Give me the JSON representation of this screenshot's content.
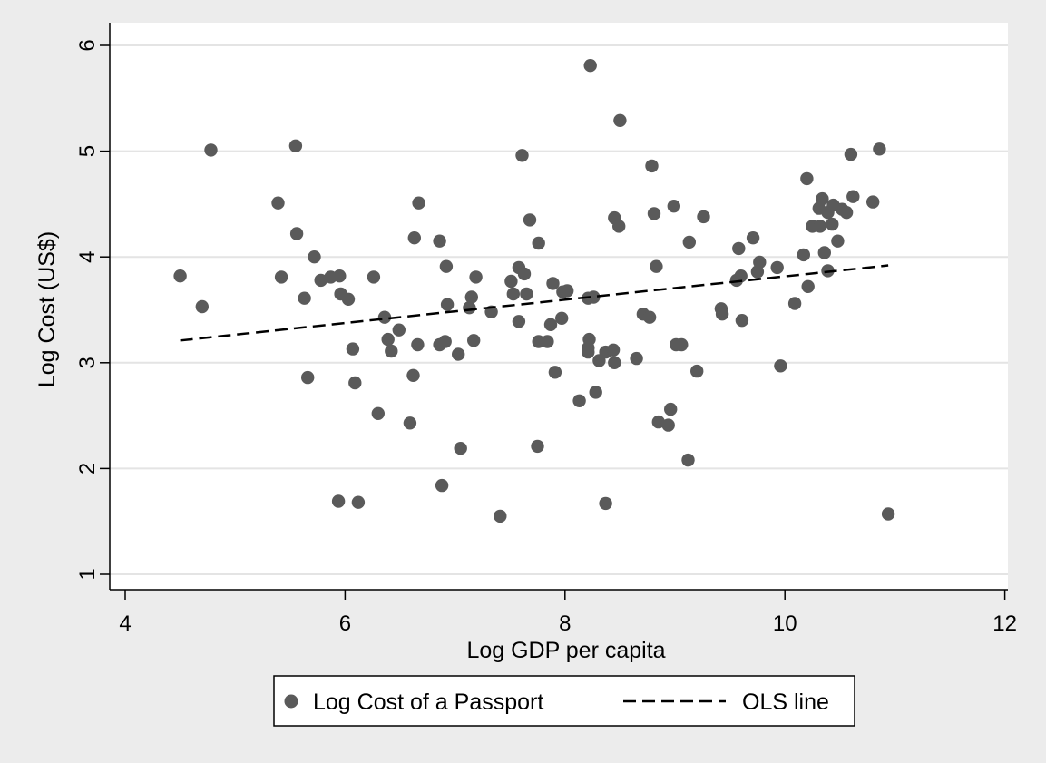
{
  "chart_data": {
    "type": "scatter",
    "title": "",
    "xlabel": "Log GDP per capita",
    "ylabel": "Log Cost (US$)",
    "xlim": [
      4,
      12
    ],
    "ylim": [
      1,
      6
    ],
    "x_ticks": [
      4,
      6,
      8,
      10,
      12
    ],
    "y_ticks": [
      1,
      2,
      3,
      4,
      5,
      6
    ],
    "grid": "horizontal",
    "legend_position": "bottom",
    "colors": {
      "background": "#ececec",
      "plot_area": "#ffffff",
      "gridline": "#e4e4e4",
      "points": "#5a5a5a",
      "ols_line": "#000000"
    },
    "series": [
      {
        "name": "Log Cost of a Passport",
        "kind": "scatter",
        "points": [
          [
            4.5,
            3.82
          ],
          [
            4.7,
            3.53
          ],
          [
            4.78,
            5.01
          ],
          [
            5.39,
            4.51
          ],
          [
            5.42,
            3.81
          ],
          [
            5.55,
            5.05
          ],
          [
            5.56,
            4.22
          ],
          [
            5.63,
            3.61
          ],
          [
            5.66,
            2.86
          ],
          [
            5.72,
            4.0
          ],
          [
            5.78,
            3.78
          ],
          [
            5.87,
            3.81
          ],
          [
            5.94,
            1.69
          ],
          [
            5.95,
            3.82
          ],
          [
            5.96,
            3.65
          ],
          [
            6.03,
            3.6
          ],
          [
            6.07,
            3.13
          ],
          [
            6.09,
            2.81
          ],
          [
            6.12,
            1.68
          ],
          [
            6.26,
            3.81
          ],
          [
            6.3,
            2.52
          ],
          [
            6.36,
            3.43
          ],
          [
            6.39,
            3.22
          ],
          [
            6.42,
            3.11
          ],
          [
            6.49,
            3.31
          ],
          [
            6.59,
            2.43
          ],
          [
            6.62,
            2.88
          ],
          [
            6.63,
            4.18
          ],
          [
            6.66,
            3.17
          ],
          [
            6.67,
            4.51
          ],
          [
            6.86,
            3.17
          ],
          [
            6.86,
            4.15
          ],
          [
            6.88,
            1.84
          ],
          [
            6.91,
            3.2
          ],
          [
            6.92,
            3.91
          ],
          [
            6.93,
            3.55
          ],
          [
            7.03,
            3.08
          ],
          [
            7.05,
            2.19
          ],
          [
            7.13,
            3.52
          ],
          [
            7.15,
            3.62
          ],
          [
            7.17,
            3.21
          ],
          [
            7.19,
            3.81
          ],
          [
            7.33,
            3.48
          ],
          [
            7.41,
            1.55
          ],
          [
            7.51,
            3.77
          ],
          [
            7.53,
            3.65
          ],
          [
            7.58,
            3.39
          ],
          [
            7.58,
            3.9
          ],
          [
            7.61,
            4.96
          ],
          [
            7.63,
            3.84
          ],
          [
            7.65,
            3.65
          ],
          [
            7.68,
            4.35
          ],
          [
            7.75,
            2.21
          ],
          [
            7.76,
            3.2
          ],
          [
            7.76,
            4.13
          ],
          [
            7.84,
            3.2
          ],
          [
            7.87,
            3.36
          ],
          [
            7.89,
            3.75
          ],
          [
            7.91,
            2.91
          ],
          [
            7.97,
            3.42
          ],
          [
            7.98,
            3.67
          ],
          [
            8.02,
            3.68
          ],
          [
            8.13,
            2.64
          ],
          [
            8.21,
            3.61
          ],
          [
            8.21,
            3.14
          ],
          [
            8.21,
            3.1
          ],
          [
            8.22,
            3.22
          ],
          [
            8.23,
            5.81
          ],
          [
            8.26,
            3.62
          ],
          [
            8.28,
            2.72
          ],
          [
            8.31,
            3.02
          ],
          [
            8.37,
            3.1
          ],
          [
            8.37,
            1.67
          ],
          [
            8.44,
            3.12
          ],
          [
            8.45,
            3.0
          ],
          [
            8.45,
            4.37
          ],
          [
            8.49,
            4.29
          ],
          [
            8.5,
            5.29
          ],
          [
            8.65,
            3.04
          ],
          [
            8.71,
            3.46
          ],
          [
            8.77,
            3.43
          ],
          [
            8.79,
            4.86
          ],
          [
            8.81,
            4.41
          ],
          [
            8.83,
            3.91
          ],
          [
            8.85,
            2.44
          ],
          [
            8.94,
            2.41
          ],
          [
            8.96,
            2.56
          ],
          [
            8.99,
            4.48
          ],
          [
            9.01,
            3.17
          ],
          [
            9.06,
            3.17
          ],
          [
            9.12,
            2.08
          ],
          [
            9.13,
            4.14
          ],
          [
            9.2,
            2.92
          ],
          [
            9.26,
            4.38
          ],
          [
            9.42,
            3.51
          ],
          [
            9.43,
            3.46
          ],
          [
            9.56,
            3.78
          ],
          [
            9.58,
            4.08
          ],
          [
            9.6,
            3.82
          ],
          [
            9.61,
            3.4
          ],
          [
            9.71,
            4.18
          ],
          [
            9.75,
            3.86
          ],
          [
            9.77,
            3.95
          ],
          [
            9.93,
            3.9
          ],
          [
            9.96,
            2.97
          ],
          [
            10.09,
            3.56
          ],
          [
            10.17,
            4.02
          ],
          [
            10.2,
            4.74
          ],
          [
            10.21,
            3.72
          ],
          [
            10.25,
            4.29
          ],
          [
            10.31,
            4.46
          ],
          [
            10.32,
            4.29
          ],
          [
            10.34,
            4.55
          ],
          [
            10.36,
            4.04
          ],
          [
            10.39,
            4.42
          ],
          [
            10.39,
            3.87
          ],
          [
            10.43,
            4.31
          ],
          [
            10.44,
            4.49
          ],
          [
            10.48,
            4.15
          ],
          [
            10.52,
            4.45
          ],
          [
            10.56,
            4.42
          ],
          [
            10.6,
            4.97
          ],
          [
            10.62,
            4.57
          ],
          [
            10.8,
            4.52
          ],
          [
            10.86,
            5.02
          ],
          [
            10.94,
            1.57
          ]
        ]
      },
      {
        "name": "OLS line",
        "kind": "line",
        "style": "dashed",
        "x": [
          4.5,
          10.94
        ],
        "y": [
          3.21,
          3.92
        ]
      }
    ]
  }
}
